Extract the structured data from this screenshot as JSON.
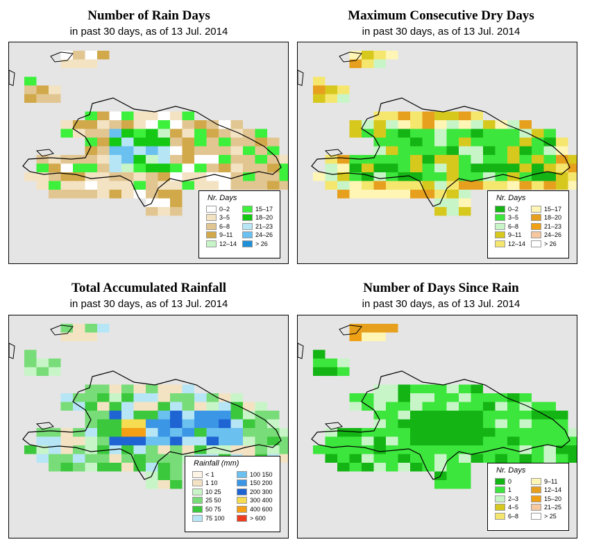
{
  "subtitle_prefix": "in past 30 days, as of",
  "date": "13 Jul. 2014",
  "panels": [
    {
      "title": "Number of Rain Days",
      "subtitle": "in past 30 days, as of  13 Jul. 2014",
      "legend": {
        "title": "Nr. Days",
        "items": [
          {
            "label": "0–2",
            "color": "#ffffff"
          },
          {
            "label": "3–5",
            "color": "#f3e3c3"
          },
          {
            "label": "6–8",
            "color": "#e2c691"
          },
          {
            "label": "9–11",
            "color": "#d1a94a"
          },
          {
            "label": "12–14",
            "color": "#c8f5c8"
          },
          {
            "label": "15–17",
            "color": "#3cf03c"
          },
          {
            "label": "18–20",
            "color": "#14c814"
          },
          {
            "label": "21–23",
            "color": "#b6e6f6"
          },
          {
            "label": "24–26",
            "color": "#6ac0ef"
          },
          {
            "label": "> 26",
            "color": "#1e90d8"
          }
        ]
      }
    },
    {
      "title": "Maximum Consecutive Dry Days",
      "subtitle": "in past 30 days, as of  13 Jul. 2014",
      "legend": {
        "title": "Nr. Days",
        "items": [
          {
            "label": "0–2",
            "color": "#14b414"
          },
          {
            "label": "3–5",
            "color": "#3ce63c"
          },
          {
            "label": "6–8",
            "color": "#c8f5c8"
          },
          {
            "label": "9–11",
            "color": "#d7c81e"
          },
          {
            "label": "12–14",
            "color": "#f5e66e"
          },
          {
            "label": "15–17",
            "color": "#fff5b4"
          },
          {
            "label": "18–20",
            "color": "#e6a01e"
          },
          {
            "label": "21–23",
            "color": "#f0a014"
          },
          {
            "label": "24–26",
            "color": "#f5c8a0"
          },
          {
            "label": "> 26",
            "color": "#ffffff"
          }
        ]
      }
    },
    {
      "title": "Total Accumulated Rainfall",
      "subtitle": "in past 30 days, as of  13 Jul. 2014",
      "legend": {
        "title": "Rainfall (mm)",
        "items": [
          {
            "label": "< 1",
            "color": "#fff5e6"
          },
          {
            "label": "1   10",
            "color": "#f3e3c3"
          },
          {
            "label": "10   25",
            "color": "#c8f5c8"
          },
          {
            "label": "25   50",
            "color": "#78dc78"
          },
          {
            "label": "50   75",
            "color": "#3cc83c"
          },
          {
            "label": "75  100",
            "color": "#b6e6f6"
          },
          {
            "label": "100  150",
            "color": "#6ac0ef"
          },
          {
            "label": "150  200",
            "color": "#3c96e6"
          },
          {
            "label": "200  300",
            "color": "#1e64d2"
          },
          {
            "label": "300  400",
            "color": "#f5dc50"
          },
          {
            "label": "400  600",
            "color": "#f5a014"
          },
          {
            "label": "> 600",
            "color": "#f03c1e"
          }
        ]
      }
    },
    {
      "title": "Number of Days Since Rain",
      "subtitle": "in past 30 days, as of  13 Jul. 2014",
      "legend": {
        "title": "Nr. Days",
        "items": [
          {
            "label": "0",
            "color": "#14b414"
          },
          {
            "label": "1",
            "color": "#3ce63c"
          },
          {
            "label": "2–3",
            "color": "#c8f5c8"
          },
          {
            "label": "4–5",
            "color": "#d7c81e"
          },
          {
            "label": "6–8",
            "color": "#f5e66e"
          },
          {
            "label": "9–11",
            "color": "#fff5b4"
          },
          {
            "label": "12–14",
            "color": "#e6a01e"
          },
          {
            "label": "15–20",
            "color": "#f0a014"
          },
          {
            "label": "21–25",
            "color": "#f5c8a0"
          },
          {
            "label": "> 25",
            "color": "#ffffff"
          }
        ]
      }
    }
  ],
  "colors": {
    "map_background": "#e5e5e5",
    "coastline": "#000000"
  }
}
